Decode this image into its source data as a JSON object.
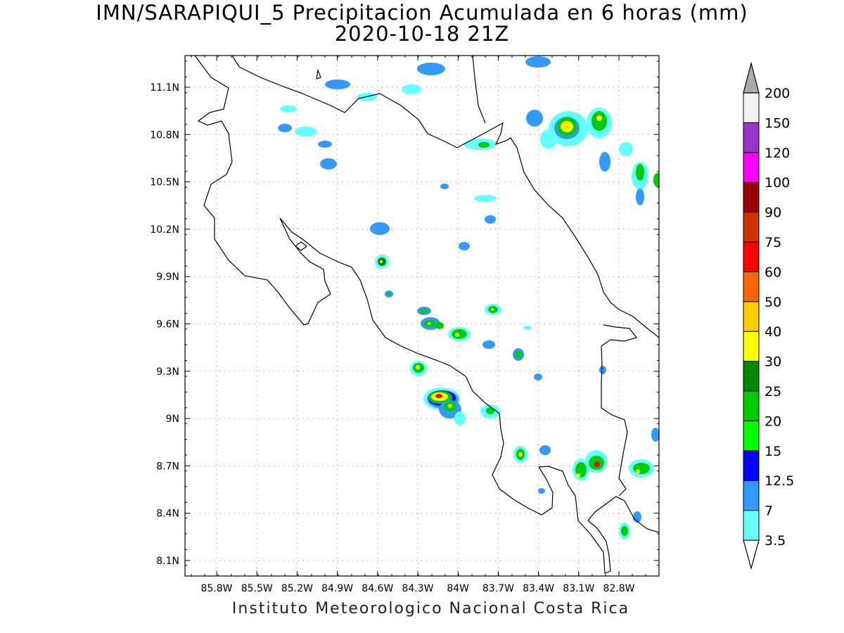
{
  "title": {
    "line1": "IMN/SARAPIQUI_5 Precipitacion Acumulada en 6 horas (mm)",
    "line2": "2020-10-18 21Z"
  },
  "credit": "Instituto Meteorologico Nacional Costa Rica",
  "map": {
    "lon_range": [
      -86.0,
      -83.0
    ],
    "lat_range": [
      8.0,
      11.3
    ],
    "grid": true,
    "x_ticks": [
      "85.8W",
      "85.5W",
      "85.2W",
      "84.9W",
      "84.6W",
      "84.3W",
      "84W",
      "83.7W",
      "83.4W",
      "83.1W",
      "82.8W"
    ],
    "y_ticks": [
      "8.1N",
      "8.4N",
      "8.7N",
      "9N",
      "9.3N",
      "9.6N",
      "9.9N",
      "10.2N",
      "10.5N",
      "10.8N",
      "11.1N"
    ]
  },
  "colorbar": {
    "labels": [
      "3.5",
      "7",
      "12.5",
      "15",
      "20",
      "25",
      "30",
      "40",
      "50",
      "60",
      "75",
      "90",
      "100",
      "120",
      "150",
      "200"
    ],
    "colors": [
      "#66ffff",
      "#3399ff",
      "#0000ff",
      "#00ff00",
      "#00cc00",
      "#008800",
      "#ffff00",
      "#ffcc00",
      "#ff6600",
      "#ff0000",
      "#cc3300",
      "#990000",
      "#ff00ff",
      "#9933cc",
      "#f2f2f2",
      "#aaaaaa"
    ]
  }
}
